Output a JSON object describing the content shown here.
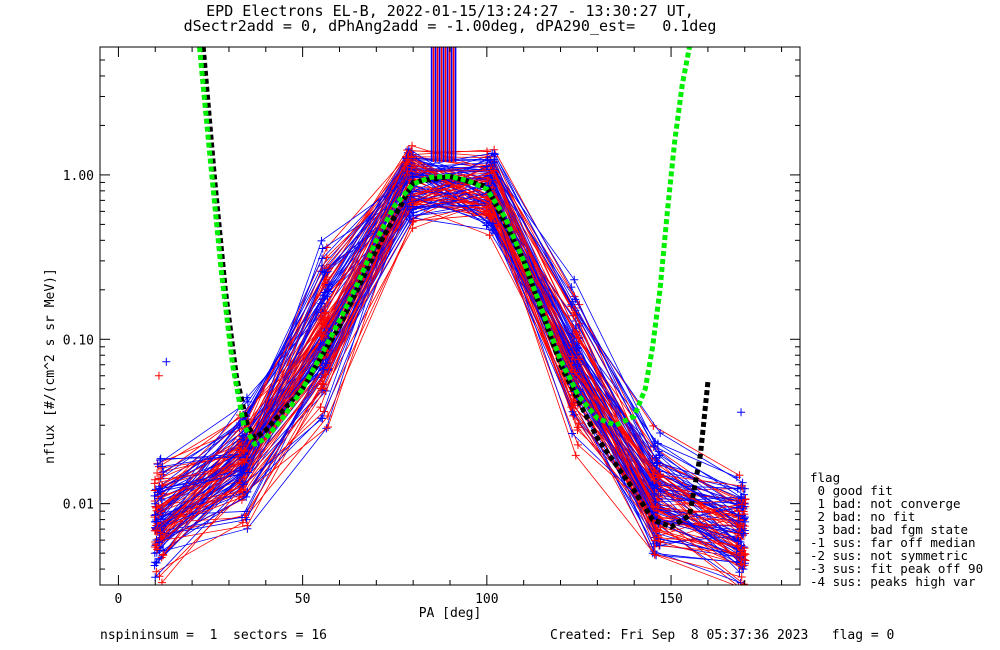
{
  "title_line1": "EPD Electrons EL-B, 2022-01-15/13:24:27 - 13:30:27 UT,",
  "title_line2": "dSectr2add = 0, dPhAng2add = -1.00deg, dPA290_est=   0.1deg",
  "footer_left": "nspininsum =  1  sectors = 16",
  "footer_right": "Created: Fri Sep  8 05:37:36 2023   flag = 0",
  "legend": {
    "title": "flag",
    "items": [
      " 0 good fit",
      " 1 bad: not converge",
      " 2 bad: no fit",
      " 3 bad: bad fgm state",
      "-1 sus: far off median",
      "-2 sus: not symmetric",
      "-3 sus: fit peak off 90",
      "-4 sus: peaks high var"
    ]
  },
  "colors": {
    "series_a": "#ff0000",
    "series_b": "#0000ff",
    "fit_curve": "#00ee00",
    "median_curve": "#000000"
  },
  "chart_data": {
    "type": "line",
    "xlabel": "PA [deg]",
    "ylabel": "nflux [#/(cm^2 s sr MeV)]",
    "xlim": [
      -5,
      185
    ],
    "ylim": [
      0.0032,
      6.0
    ],
    "yscale": "log",
    "x_ticks": [
      0,
      50,
      100,
      150
    ],
    "y_ticks": [
      {
        "value": 0.01,
        "label": "0.01"
      },
      {
        "value": 0.1,
        "label": "0.10"
      },
      {
        "value": 1.0,
        "label": "1.00"
      }
    ],
    "pitch_angles": [
      11,
      34,
      56,
      79,
      101,
      124,
      146,
      169
    ],
    "profile_templates": [
      [
        0.008,
        0.02,
        0.12,
        0.95,
        0.8,
        0.08,
        0.01,
        0.007
      ],
      [
        0.011,
        0.03,
        0.2,
        1.0,
        0.9,
        0.1,
        0.013,
        0.009
      ],
      [
        0.006,
        0.014,
        0.07,
        0.85,
        0.7,
        0.05,
        0.008,
        0.005
      ],
      [
        0.013,
        0.025,
        0.3,
        1.05,
        1.0,
        0.15,
        0.02,
        0.012
      ],
      [
        0.005,
        0.01,
        0.04,
        0.7,
        0.6,
        0.03,
        0.006,
        0.004
      ],
      [
        0.009,
        0.018,
        0.1,
        0.9,
        0.75,
        0.06,
        0.011,
        0.006
      ]
    ],
    "outliers": [
      {
        "x": 11,
        "y": 0.06,
        "series": "a"
      },
      {
        "x": 13,
        "y": 0.073,
        "series": "b"
      },
      {
        "x": 169,
        "y": 0.036,
        "series": "b"
      }
    ],
    "fit_curve": {
      "x": [
        22,
        25,
        28,
        31,
        34,
        37,
        40,
        45,
        50,
        55,
        60,
        65,
        70,
        75,
        80,
        85,
        90,
        95,
        100,
        105,
        110,
        115,
        120,
        125,
        130,
        135,
        140,
        143,
        145,
        147,
        149,
        151,
        153,
        155
      ],
      "y": [
        6.0,
        1.2,
        0.25,
        0.07,
        0.03,
        0.023,
        0.025,
        0.034,
        0.05,
        0.08,
        0.13,
        0.22,
        0.4,
        0.65,
        0.88,
        0.97,
        0.98,
        0.92,
        0.82,
        0.55,
        0.3,
        0.15,
        0.075,
        0.045,
        0.033,
        0.03,
        0.034,
        0.05,
        0.09,
        0.2,
        0.6,
        1.6,
        3.5,
        6.0
      ]
    },
    "median_curve": {
      "x": [
        23,
        26,
        29,
        32,
        35,
        37,
        40,
        50,
        60,
        70,
        80,
        90,
        100,
        110,
        120,
        130,
        140,
        145,
        150,
        155,
        158,
        160
      ],
      "y": [
        6.0,
        1.0,
        0.2,
        0.06,
        0.03,
        0.025,
        0.028,
        0.05,
        0.12,
        0.35,
        0.9,
        0.98,
        0.85,
        0.3,
        0.07,
        0.025,
        0.012,
        0.008,
        0.0072,
        0.0085,
        0.02,
        0.055
      ]
    },
    "saturated_band": {
      "x_min": 85,
      "x_max": 92,
      "y_min": 1.2
    }
  }
}
